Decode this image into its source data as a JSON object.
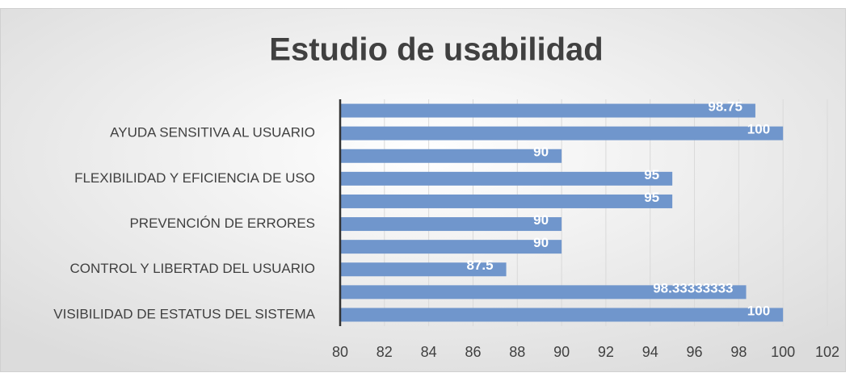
{
  "chart_data": {
    "type": "bar",
    "orientation": "horizontal",
    "title": "Estudio de usabilidad",
    "categories": [
      "VISIBILIDAD DE ESTATUS DEL SISTEMA",
      null,
      "CONTROL Y LIBERTAD DEL USUARIO",
      null,
      "PREVENCIÓN DE ERRORES",
      null,
      "FLEXIBILIDAD Y EFICIENCIA DE USO",
      null,
      "AYUDA SENSITIVA AL USUARIO ",
      null
    ],
    "values": [
      100,
      98.33333333,
      87.5,
      90,
      90,
      95,
      95,
      90,
      100,
      98.75
    ],
    "color": "#7096cc",
    "xlim": [
      80,
      102
    ],
    "xticks": [
      80,
      82,
      84,
      86,
      88,
      90,
      92,
      94,
      96,
      98,
      100,
      102
    ],
    "grid": true
  }
}
